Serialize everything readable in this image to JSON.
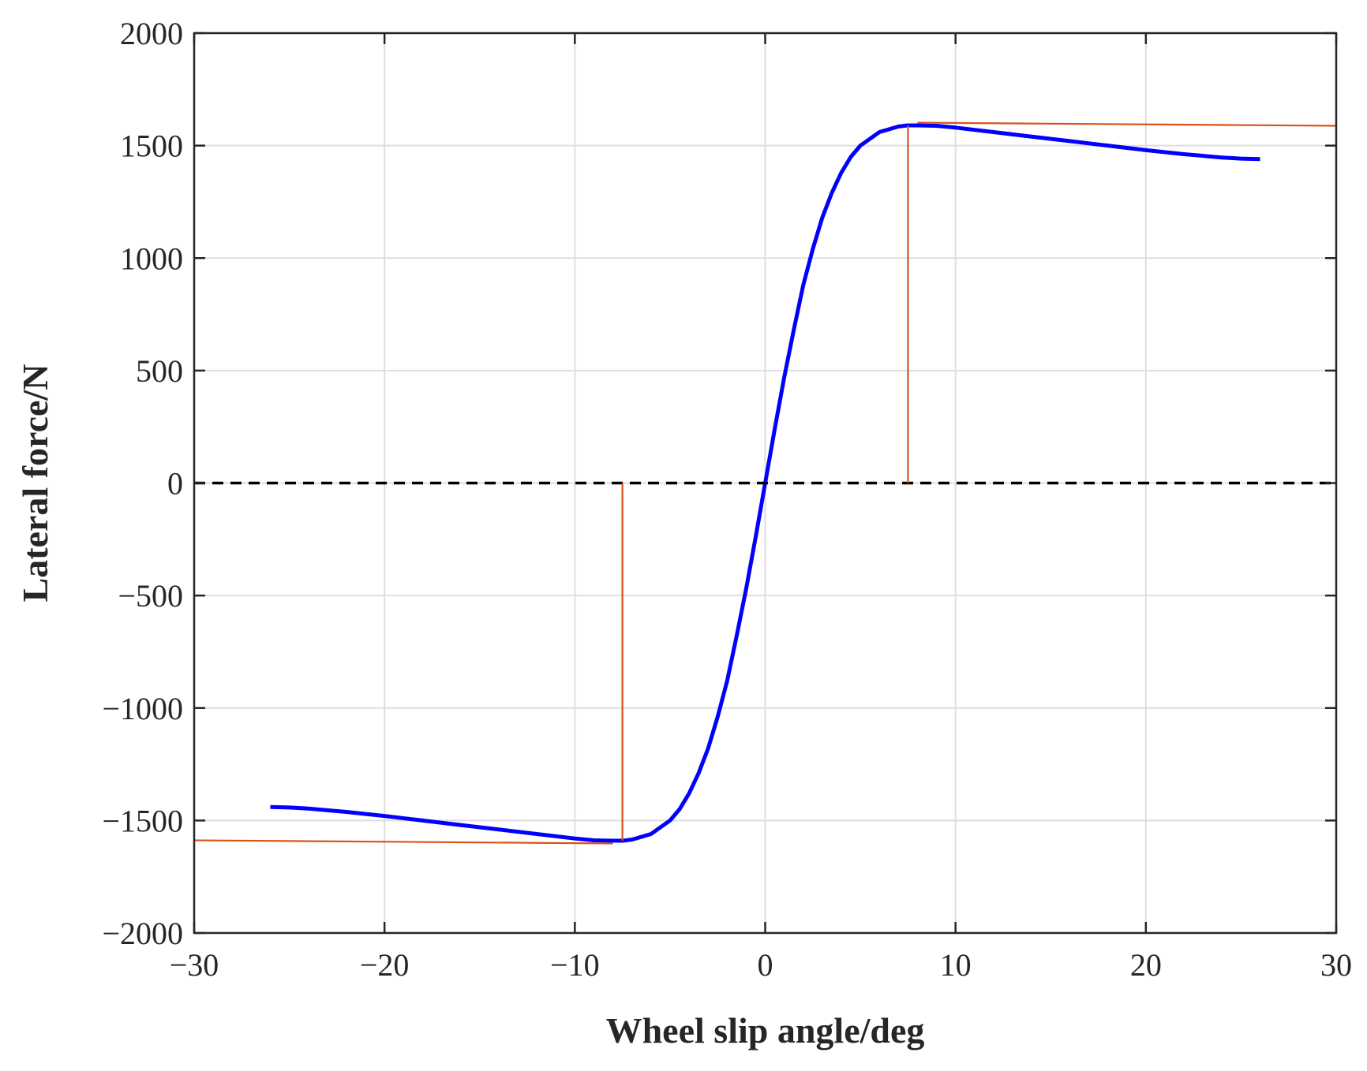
{
  "chart_data": {
    "type": "line",
    "title": "",
    "xlabel": "Wheel slip angle/deg",
    "ylabel": "Lateral force/N",
    "xlim": [
      -30,
      30
    ],
    "ylim": [
      -2000,
      2000
    ],
    "x_ticks": [
      -30,
      -20,
      -10,
      0,
      10,
      20,
      30
    ],
    "x_tick_labels": [
      "−30",
      "−20",
      "−10",
      "0",
      "10",
      "20",
      "30"
    ],
    "y_ticks": [
      -2000,
      -1500,
      -1000,
      -500,
      0,
      500,
      1000,
      1500,
      2000
    ],
    "y_tick_labels": [
      "−2000",
      "−1500",
      "−1000",
      "−500",
      "0",
      "500",
      "1000",
      "1500",
      "2000"
    ],
    "grid": true,
    "legend": "none",
    "colors": {
      "curve": "#0000ff",
      "asymptote": "#d95319",
      "zero_line": "#000000",
      "grid": "#dedede",
      "axes": "#262626"
    },
    "series": [
      {
        "role": "lateral-force-curve",
        "style": "solid-thick",
        "x": [
          -26,
          -25,
          -24,
          -22,
          -20,
          -18,
          -16,
          -14,
          -12,
          -10,
          -9,
          -8,
          -7.5,
          -7,
          -6,
          -5,
          -4.5,
          -4,
          -3.5,
          -3,
          -2.5,
          -2,
          -1.5,
          -1,
          -0.5,
          0,
          0.5,
          1,
          1.5,
          2,
          2.5,
          3,
          3.5,
          4,
          4.5,
          5,
          6,
          7,
          7.5,
          8,
          9,
          10,
          12,
          14,
          16,
          18,
          20,
          22,
          24,
          25,
          26
        ],
        "y": [
          -1440,
          -1442,
          -1447,
          -1462,
          -1480,
          -1500,
          -1520,
          -1540,
          -1560,
          -1580,
          -1588,
          -1590,
          -1590,
          -1585,
          -1560,
          -1500,
          -1450,
          -1380,
          -1290,
          -1180,
          -1040,
          -880,
          -680,
          -470,
          -240,
          0,
          240,
          470,
          680,
          880,
          1040,
          1180,
          1290,
          1380,
          1450,
          1500,
          1560,
          1585,
          1590,
          1590,
          1588,
          1580,
          1560,
          1540,
          1520,
          1500,
          1480,
          1462,
          1447,
          1442,
          1440
        ]
      },
      {
        "role": "zero-reference",
        "style": "dashed",
        "x": [
          -30,
          30
        ],
        "y": [
          0,
          0
        ]
      },
      {
        "role": "upper-asymptote",
        "style": "thin",
        "x": [
          8,
          30
        ],
        "y": [
          1602,
          1588
        ]
      },
      {
        "role": "lower-asymptote",
        "style": "thin",
        "x": [
          -30,
          -8
        ],
        "y": [
          -1588,
          -1602
        ]
      },
      {
        "role": "upper-peak-marker",
        "style": "thin",
        "x": [
          7.5,
          7.5
        ],
        "y": [
          0,
          1590
        ]
      },
      {
        "role": "lower-peak-marker",
        "style": "thin",
        "x": [
          -7.5,
          -7.5
        ],
        "y": [
          0,
          -1590
        ]
      }
    ]
  }
}
